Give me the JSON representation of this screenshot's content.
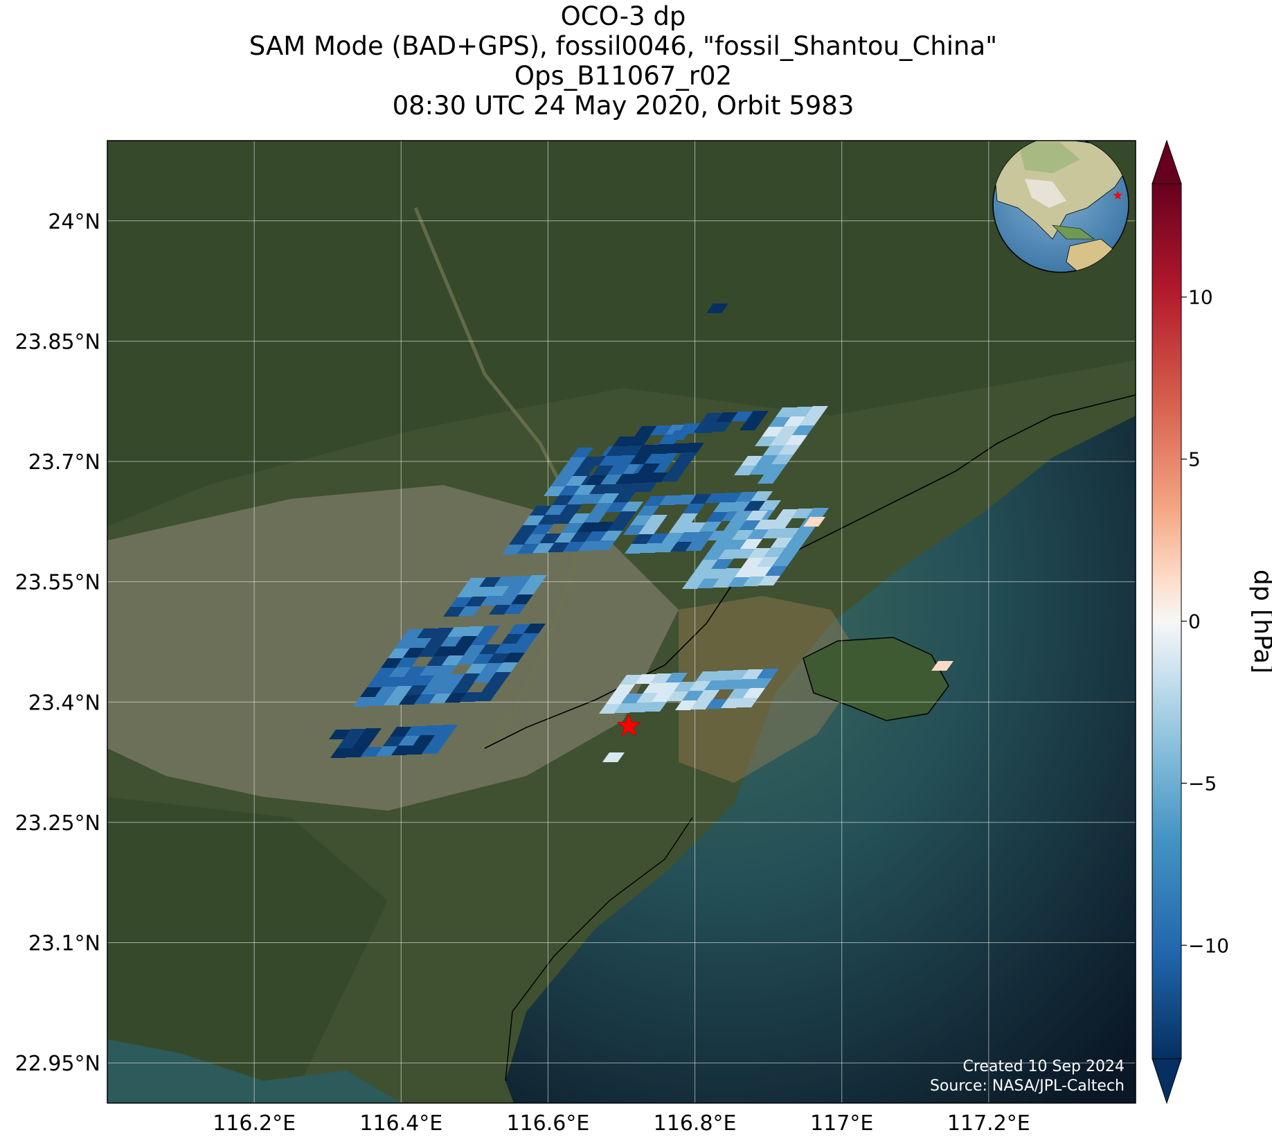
{
  "title": {
    "line1": "OCO-3 dp",
    "line2": "SAM Mode (BAD+GPS), fossil0046, \"fossil_Shantou_China\"",
    "line3": "Ops_B11067_r02",
    "line4": "08:30 UTC 24 May 2020, Orbit 5983"
  },
  "map": {
    "lat_labels": [
      "24°N",
      "23.85°N",
      "23.7°N",
      "23.55°N",
      "23.4°N",
      "23.25°N",
      "23.1°N",
      "22.95°N"
    ],
    "lon_labels": [
      "116.2°E",
      "116.4°E",
      "116.6°E",
      "116.8°E",
      "117°E",
      "117.2°E"
    ],
    "lat_values": [
      24.0,
      23.85,
      23.7,
      23.55,
      23.4,
      23.25,
      23.1,
      22.95
    ],
    "lon_values": [
      116.2,
      116.4,
      116.6,
      116.8,
      117.0,
      117.2
    ],
    "lon_range": [
      116.0,
      117.4
    ],
    "lat_range": [
      22.9,
      24.1
    ],
    "target_marker": {
      "lon": 116.71,
      "lat": 23.37,
      "color": "#ff0000"
    },
    "inset_globe": {
      "marker_color": "#ff0000"
    },
    "footer": {
      "created": "Created 10 Sep 2024",
      "source": "Source: NASA/JPL-Caltech"
    }
  },
  "colorbar": {
    "label": "dp [hPa]",
    "ticks": [
      "10",
      "5",
      "0",
      "−5",
      "−10"
    ],
    "tick_values": [
      10,
      5,
      0,
      -5,
      -10
    ],
    "range": [
      -13.5,
      13.5
    ],
    "colormap": "RdBu_r",
    "extend": "both"
  },
  "colors": {
    "land": "#3f5130",
    "water": "#1f4a4f",
    "deep_water": "#0b1a2a",
    "city": "#8a8775"
  }
}
